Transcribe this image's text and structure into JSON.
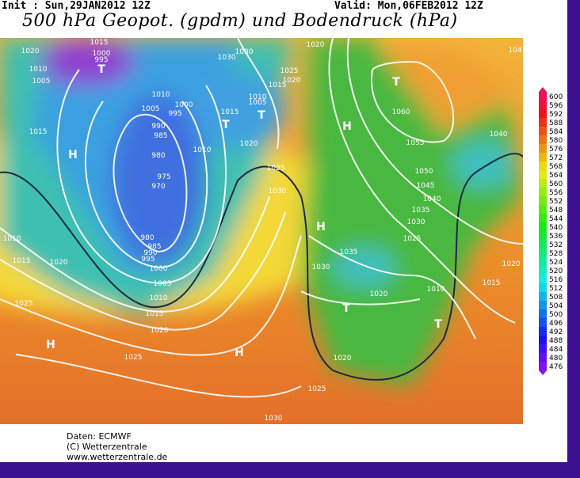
{
  "header": {
    "init": "Init : Sun,29JAN2012 12Z",
    "valid": "Valid: Mon,06FEB2012 12Z",
    "title": "500 hPa Geopot. (gpdm) und Bodendruck (hPa)"
  },
  "legend": {
    "labels": [
      600,
      596,
      592,
      588,
      584,
      580,
      576,
      572,
      568,
      564,
      560,
      556,
      552,
      548,
      544,
      540,
      536,
      532,
      528,
      524,
      520,
      516,
      512,
      508,
      504,
      500,
      496,
      492,
      488,
      484,
      480,
      476
    ]
  },
  "map_labels": [
    "1015",
    "1020",
    "1000",
    "995",
    "1010",
    "1005",
    "T",
    "1030",
    "1030",
    "1020",
    "1025",
    "1020",
    "1015",
    "1010",
    "1005",
    "1015",
    "1010",
    "1005",
    "1000",
    "995",
    "990",
    "985",
    "980",
    "975",
    "970",
    "1015",
    "H",
    "T",
    "T",
    "1020",
    "1010",
    "1025",
    "1030",
    "H",
    "T",
    "1060",
    "1055",
    "1040",
    "1050",
    "1045",
    "1040",
    "1035",
    "1030",
    "1025",
    "H",
    "1035",
    "1030",
    "1020",
    "1010",
    "1015",
    "1020",
    "T",
    "T",
    "1020",
    "1025",
    "1030",
    "1010",
    "1015",
    "1020",
    "980",
    "985",
    "990",
    "995",
    "1000",
    "1005",
    "1010",
    "1015",
    "1020",
    "1025",
    "1025",
    "H",
    "H",
    "104"
  ],
  "footer": [
    "Daten: ECMWF",
    "(C) Wetterzentrale",
    "www.wetterzentrale.de"
  ]
}
